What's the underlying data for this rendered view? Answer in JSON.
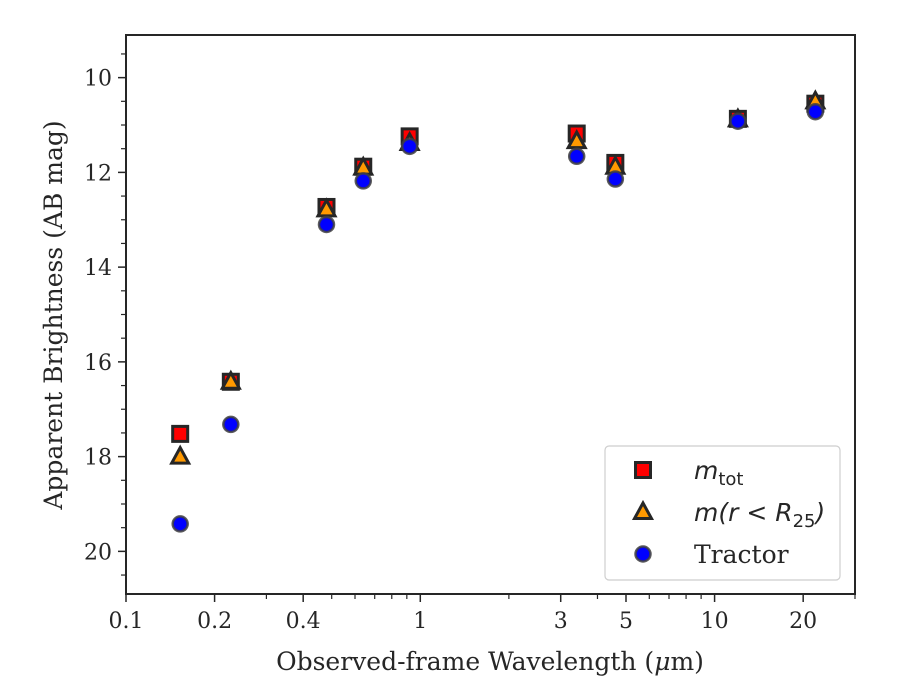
{
  "chart_data": {
    "type": "scatter",
    "xlabel_prefix": "Observed-frame Wavelength (",
    "xlabel_mu": "μ",
    "xlabel_suffix": "m)",
    "ylabel": "Apparent Brightness (AB mag)",
    "x_scale": "log",
    "xlim": [
      0.1,
      30
    ],
    "ylim": [
      20.9,
      9.1
    ],
    "y_inverted": true,
    "x_ticks": [
      {
        "value": 0.1,
        "label": "0.1"
      },
      {
        "value": 0.2,
        "label": "0.2"
      },
      {
        "value": 0.4,
        "label": "0.4"
      },
      {
        "value": 1,
        "label": "1"
      },
      {
        "value": 3,
        "label": "3"
      },
      {
        "value": 5,
        "label": "5"
      },
      {
        "value": 10,
        "label": "10"
      },
      {
        "value": 20,
        "label": "20"
      }
    ],
    "x_minor_ticks": [
      0.3,
      0.5,
      0.6,
      0.7,
      0.8,
      0.9,
      2,
      4,
      6,
      7,
      8,
      9,
      30
    ],
    "y_ticks": [
      10,
      12,
      14,
      16,
      18,
      20
    ],
    "y_minor_ticks": [
      9.5,
      10.5,
      11,
      11.5,
      12.5,
      13,
      13.5,
      14.5,
      15,
      15.5,
      16.5,
      17,
      17.5,
      18.5,
      19,
      19.5,
      20.5
    ],
    "grid": false,
    "legend_position": "lower-right",
    "series": [
      {
        "key": "mtot",
        "marker": "square",
        "color": "#ff0000",
        "edge_color": "#262626",
        "error_color": "#e00000",
        "x": [
          0.1528,
          0.2271,
          0.48,
          0.64,
          0.92,
          3.4,
          4.6,
          12,
          22
        ],
        "y": [
          17.52,
          16.42,
          12.73,
          11.88,
          11.24,
          11.18,
          11.8,
          10.87,
          10.55
        ]
      },
      {
        "key": "mr25",
        "marker": "triangle",
        "color": "#ff9900",
        "edge_color": "#262626",
        "error_color": "#f2b300",
        "x": [
          0.1528,
          0.2271,
          0.48,
          0.64,
          0.92,
          3.4,
          4.6,
          12,
          22
        ],
        "y": [
          18.0,
          16.42,
          12.78,
          11.9,
          11.38,
          11.34,
          11.88,
          10.88,
          10.5
        ]
      },
      {
        "key": "tractor",
        "marker": "circle",
        "color": "#0000ff",
        "edge_color": "#404040",
        "error_color": "#3333ff",
        "x": [
          0.1528,
          0.2271,
          0.48,
          0.64,
          0.92,
          3.4,
          4.6,
          12,
          22
        ],
        "y": [
          19.42,
          17.32,
          13.1,
          12.18,
          11.45,
          11.66,
          12.14,
          10.92,
          10.72
        ]
      }
    ],
    "legend": {
      "mtot": {
        "main": "m",
        "sub": "tot"
      },
      "mr25": {
        "main": "m(r < R",
        "sub": "25",
        "tail": ")"
      },
      "tractor": {
        "text": "Tractor"
      }
    }
  }
}
